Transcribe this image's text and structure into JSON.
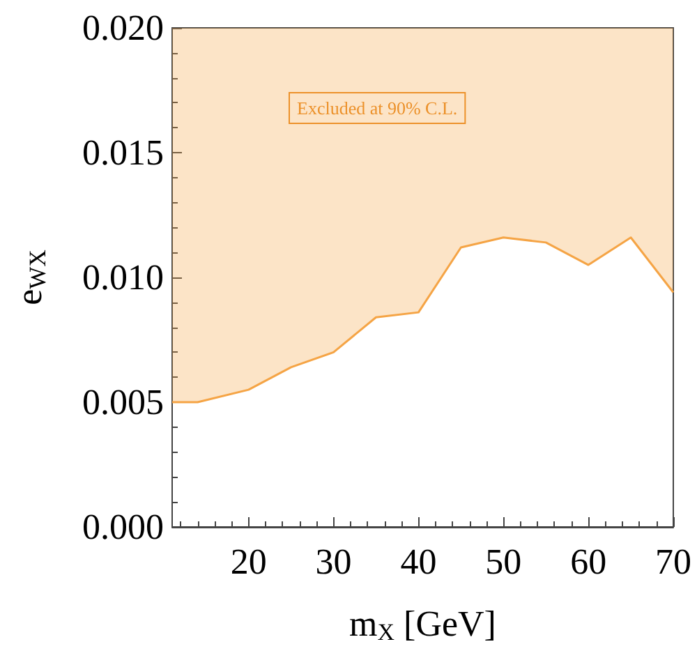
{
  "chart_data": {
    "type": "line",
    "xlabel": "m$_{X}$ [GeV]",
    "ylabel": "e$_{WX}$",
    "x": [
      11,
      14,
      20,
      25,
      30,
      35,
      40,
      45,
      50,
      55,
      60,
      65,
      70
    ],
    "series": [
      {
        "color": "#f5a445",
        "values": [
          0.005,
          0.005,
          0.0055,
          0.0064,
          0.007,
          0.0084,
          0.0086,
          0.0112,
          0.0116,
          0.0114,
          0.0105,
          0.0116,
          0.0094
        ],
        "lower": [
          0.005,
          0.005,
          0.0055,
          0.0064,
          0.007,
          0.0084,
          0.0086,
          0.0112,
          0.0116,
          0.0114,
          0.0105,
          0.0116,
          0.0094
        ],
        "upper": [
          0.02,
          0.02,
          0.02,
          0.02,
          0.02,
          0.02,
          0.02,
          0.02,
          0.02,
          0.02,
          0.02,
          0.02,
          0.02
        ]
      }
    ],
    "xlim": [
      11,
      70
    ],
    "xticks": [
      20,
      30,
      40,
      50,
      60,
      70
    ],
    "ylim": [
      0,
      0.02
    ],
    "yticks": [
      {
        "value": 0,
        "label": "0.000"
      },
      {
        "value": 0.005,
        "label": "0.005"
      },
      {
        "value": 0.01,
        "label": "0.010"
      },
      {
        "value": 0.015,
        "label": "0.015"
      },
      {
        "value": 0.02,
        "label": "0.020"
      }
    ],
    "annotations": [
      "Excluded at 90% C.L."
    ],
    "grid": false,
    "marker": "none",
    "line_style": "solid"
  }
}
